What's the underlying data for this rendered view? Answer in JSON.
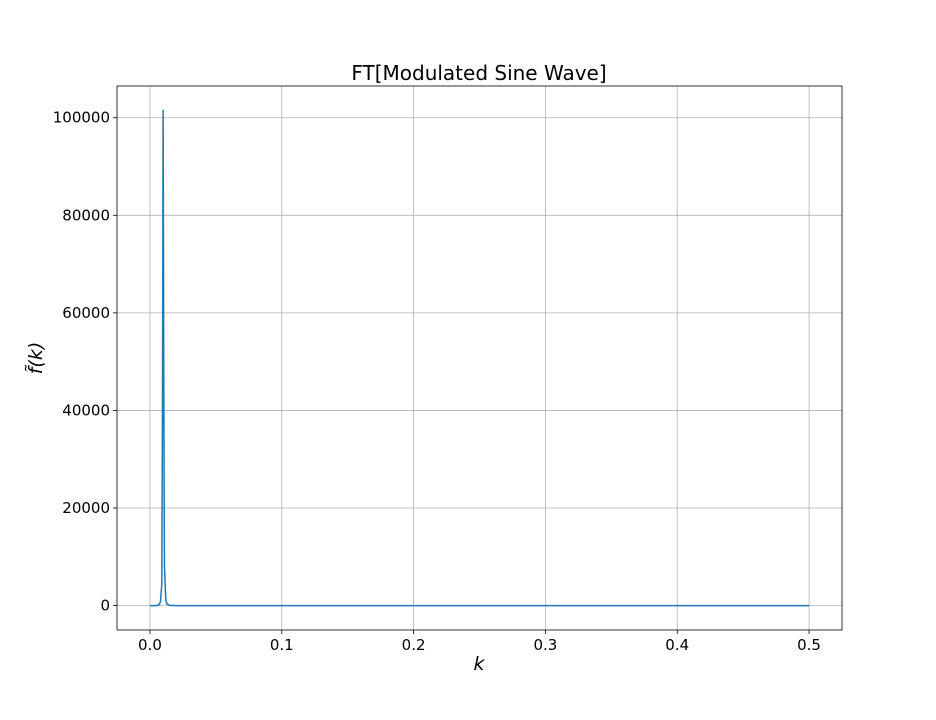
{
  "chart_data": {
    "type": "line",
    "title": "FT[Modulated Sine Wave]",
    "xlabel": "k",
    "ylabel": "f̃(k)",
    "xlim": [
      -0.025,
      0.525
    ],
    "ylim": [
      -5000,
      106500
    ],
    "xticks": [
      0.0,
      0.1,
      0.2,
      0.3,
      0.4,
      0.5
    ],
    "xtick_labels": [
      "0.0",
      "0.1",
      "0.2",
      "0.3",
      "0.4",
      "0.5"
    ],
    "yticks": [
      0,
      20000,
      40000,
      60000,
      80000,
      100000
    ],
    "ytick_labels": [
      "0",
      "20000",
      "40000",
      "60000",
      "80000",
      "100000"
    ],
    "grid": true,
    "series": [
      {
        "color": "#1f77b4",
        "x": [
          0.0,
          0.005,
          0.007,
          0.008,
          0.009,
          0.0095,
          0.01,
          0.0105,
          0.011,
          0.012,
          0.013,
          0.015,
          0.02,
          0.05,
          0.1,
          0.2,
          0.3,
          0.4,
          0.5
        ],
        "y": [
          0,
          0,
          200,
          800,
          4500,
          40000,
          101500,
          45000,
          8000,
          1200,
          300,
          50,
          0,
          0,
          0,
          0,
          0,
          0,
          0
        ]
      }
    ]
  }
}
